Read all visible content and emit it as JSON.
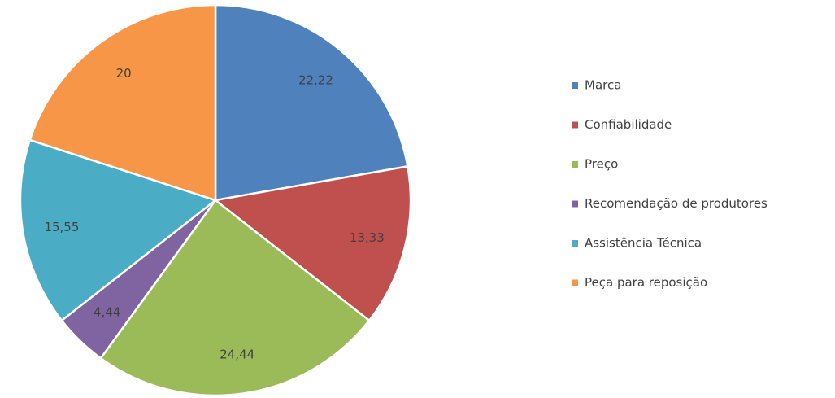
{
  "chart_data": {
    "type": "pie",
    "categories": [
      "Marca",
      "Confiabilidade",
      "Preço",
      "Recomendação de produtores",
      "Assistência Técnica",
      "Peça para reposição"
    ],
    "values": [
      22.22,
      13.33,
      24.44,
      4.44,
      15.55,
      20
    ],
    "value_labels": [
      "22,22",
      "13,33",
      "24,44",
      "4,44",
      "15,55",
      "20"
    ],
    "colors": [
      "#4f81bd",
      "#c0504d",
      "#9bbb59",
      "#8064a2",
      "#4bacc6",
      "#f79646"
    ],
    "legend": "right"
  }
}
